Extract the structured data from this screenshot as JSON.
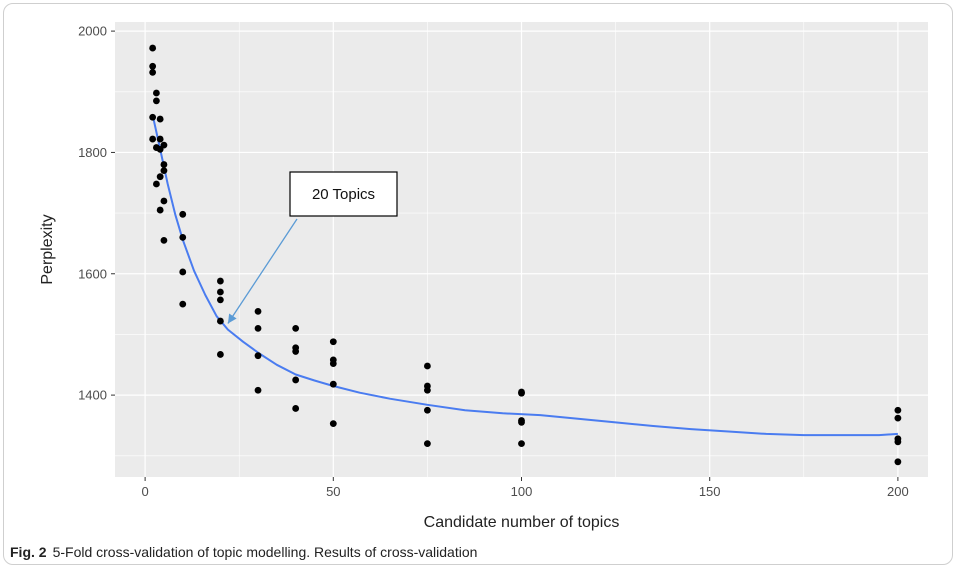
{
  "chart_data": {
    "type": "scatter",
    "title": "",
    "xlabel": "Candidate number of topics",
    "ylabel": "Perplexity",
    "xlim": [
      -8,
      208
    ],
    "ylim": [
      1265,
      2015
    ],
    "x_ticks": [
      0,
      50,
      100,
      150,
      200
    ],
    "y_ticks": [
      1400,
      1600,
      1800,
      2000
    ],
    "grid": true,
    "background": "#ebebeb",
    "point_color": "#000000",
    "line_color": "#4a7cf0",
    "series": [
      {
        "kind": "points",
        "points": [
          [
            2,
            1972
          ],
          [
            2,
            1942
          ],
          [
            2,
            1932
          ],
          [
            2,
            1858
          ],
          [
            2,
            1822
          ],
          [
            3,
            1898
          ],
          [
            3,
            1885
          ],
          [
            3,
            1808
          ],
          [
            3,
            1748
          ],
          [
            4,
            1855
          ],
          [
            4,
            1822
          ],
          [
            4,
            1805
          ],
          [
            4,
            1760
          ],
          [
            4,
            1705
          ],
          [
            5,
            1812
          ],
          [
            5,
            1780
          ],
          [
            5,
            1770
          ],
          [
            5,
            1720
          ],
          [
            5,
            1655
          ],
          [
            10,
            1698
          ],
          [
            10,
            1660
          ],
          [
            10,
            1603
          ],
          [
            10,
            1550
          ],
          [
            20,
            1588
          ],
          [
            20,
            1570
          ],
          [
            20,
            1557
          ],
          [
            20,
            1522
          ],
          [
            20,
            1467
          ],
          [
            30,
            1538
          ],
          [
            30,
            1510
          ],
          [
            30,
            1465
          ],
          [
            30,
            1408
          ],
          [
            40,
            1510
          ],
          [
            40,
            1478
          ],
          [
            40,
            1472
          ],
          [
            40,
            1425
          ],
          [
            40,
            1378
          ],
          [
            50,
            1488
          ],
          [
            50,
            1458
          ],
          [
            50,
            1452
          ],
          [
            50,
            1418
          ],
          [
            50,
            1353
          ],
          [
            75,
            1448
          ],
          [
            75,
            1415
          ],
          [
            75,
            1408
          ],
          [
            75,
            1375
          ],
          [
            75,
            1320
          ],
          [
            100,
            1405
          ],
          [
            100,
            1403
          ],
          [
            100,
            1358
          ],
          [
            100,
            1355
          ],
          [
            100,
            1320
          ],
          [
            200,
            1375
          ],
          [
            200,
            1362
          ],
          [
            200,
            1328
          ],
          [
            200,
            1323
          ],
          [
            200,
            1290
          ]
        ]
      },
      {
        "kind": "smooth",
        "points": [
          [
            2,
            1862
          ],
          [
            4,
            1805
          ],
          [
            6,
            1748
          ],
          [
            8,
            1698
          ],
          [
            10,
            1656
          ],
          [
            13,
            1605
          ],
          [
            16,
            1565
          ],
          [
            19,
            1530
          ],
          [
            22,
            1508
          ],
          [
            26,
            1488
          ],
          [
            30,
            1470
          ],
          [
            35,
            1450
          ],
          [
            40,
            1434
          ],
          [
            45,
            1424
          ],
          [
            50,
            1415
          ],
          [
            57,
            1404
          ],
          [
            65,
            1394
          ],
          [
            75,
            1384
          ],
          [
            85,
            1375
          ],
          [
            95,
            1370
          ],
          [
            105,
            1367
          ],
          [
            115,
            1361
          ],
          [
            125,
            1355
          ],
          [
            135,
            1349
          ],
          [
            145,
            1344
          ],
          [
            155,
            1340
          ],
          [
            165,
            1336
          ],
          [
            175,
            1334
          ],
          [
            185,
            1334
          ],
          [
            195,
            1334
          ],
          [
            200,
            1336
          ]
        ]
      }
    ],
    "annotation": {
      "text": "20 Topics",
      "target": [
        22,
        1518
      ]
    }
  },
  "caption": {
    "label": "Fig. 2",
    "text": "5-Fold cross-validation of topic modelling. Results of cross-validation"
  }
}
